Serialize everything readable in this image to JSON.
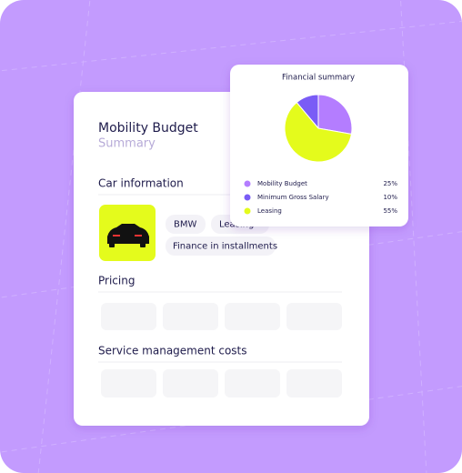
{
  "card": {
    "title": "Mobility Budget",
    "subtitle": "Summary",
    "car_section": "Car information",
    "chips": [
      "BMW",
      "Leasing",
      "Finance in installments"
    ],
    "pricing_section": "Pricing",
    "service_section": "Service management costs"
  },
  "chart_data": {
    "type": "pie",
    "title": "Financial summary",
    "categories": [
      "Mobility Budget",
      "Minimum Gross Salary",
      "Leasing"
    ],
    "values": [
      25,
      10,
      55
    ],
    "value_labels": [
      "25%",
      "10%",
      "55%"
    ],
    "colors": [
      "#b47dff",
      "#7a5cf6",
      "#e4fb1c"
    ]
  }
}
